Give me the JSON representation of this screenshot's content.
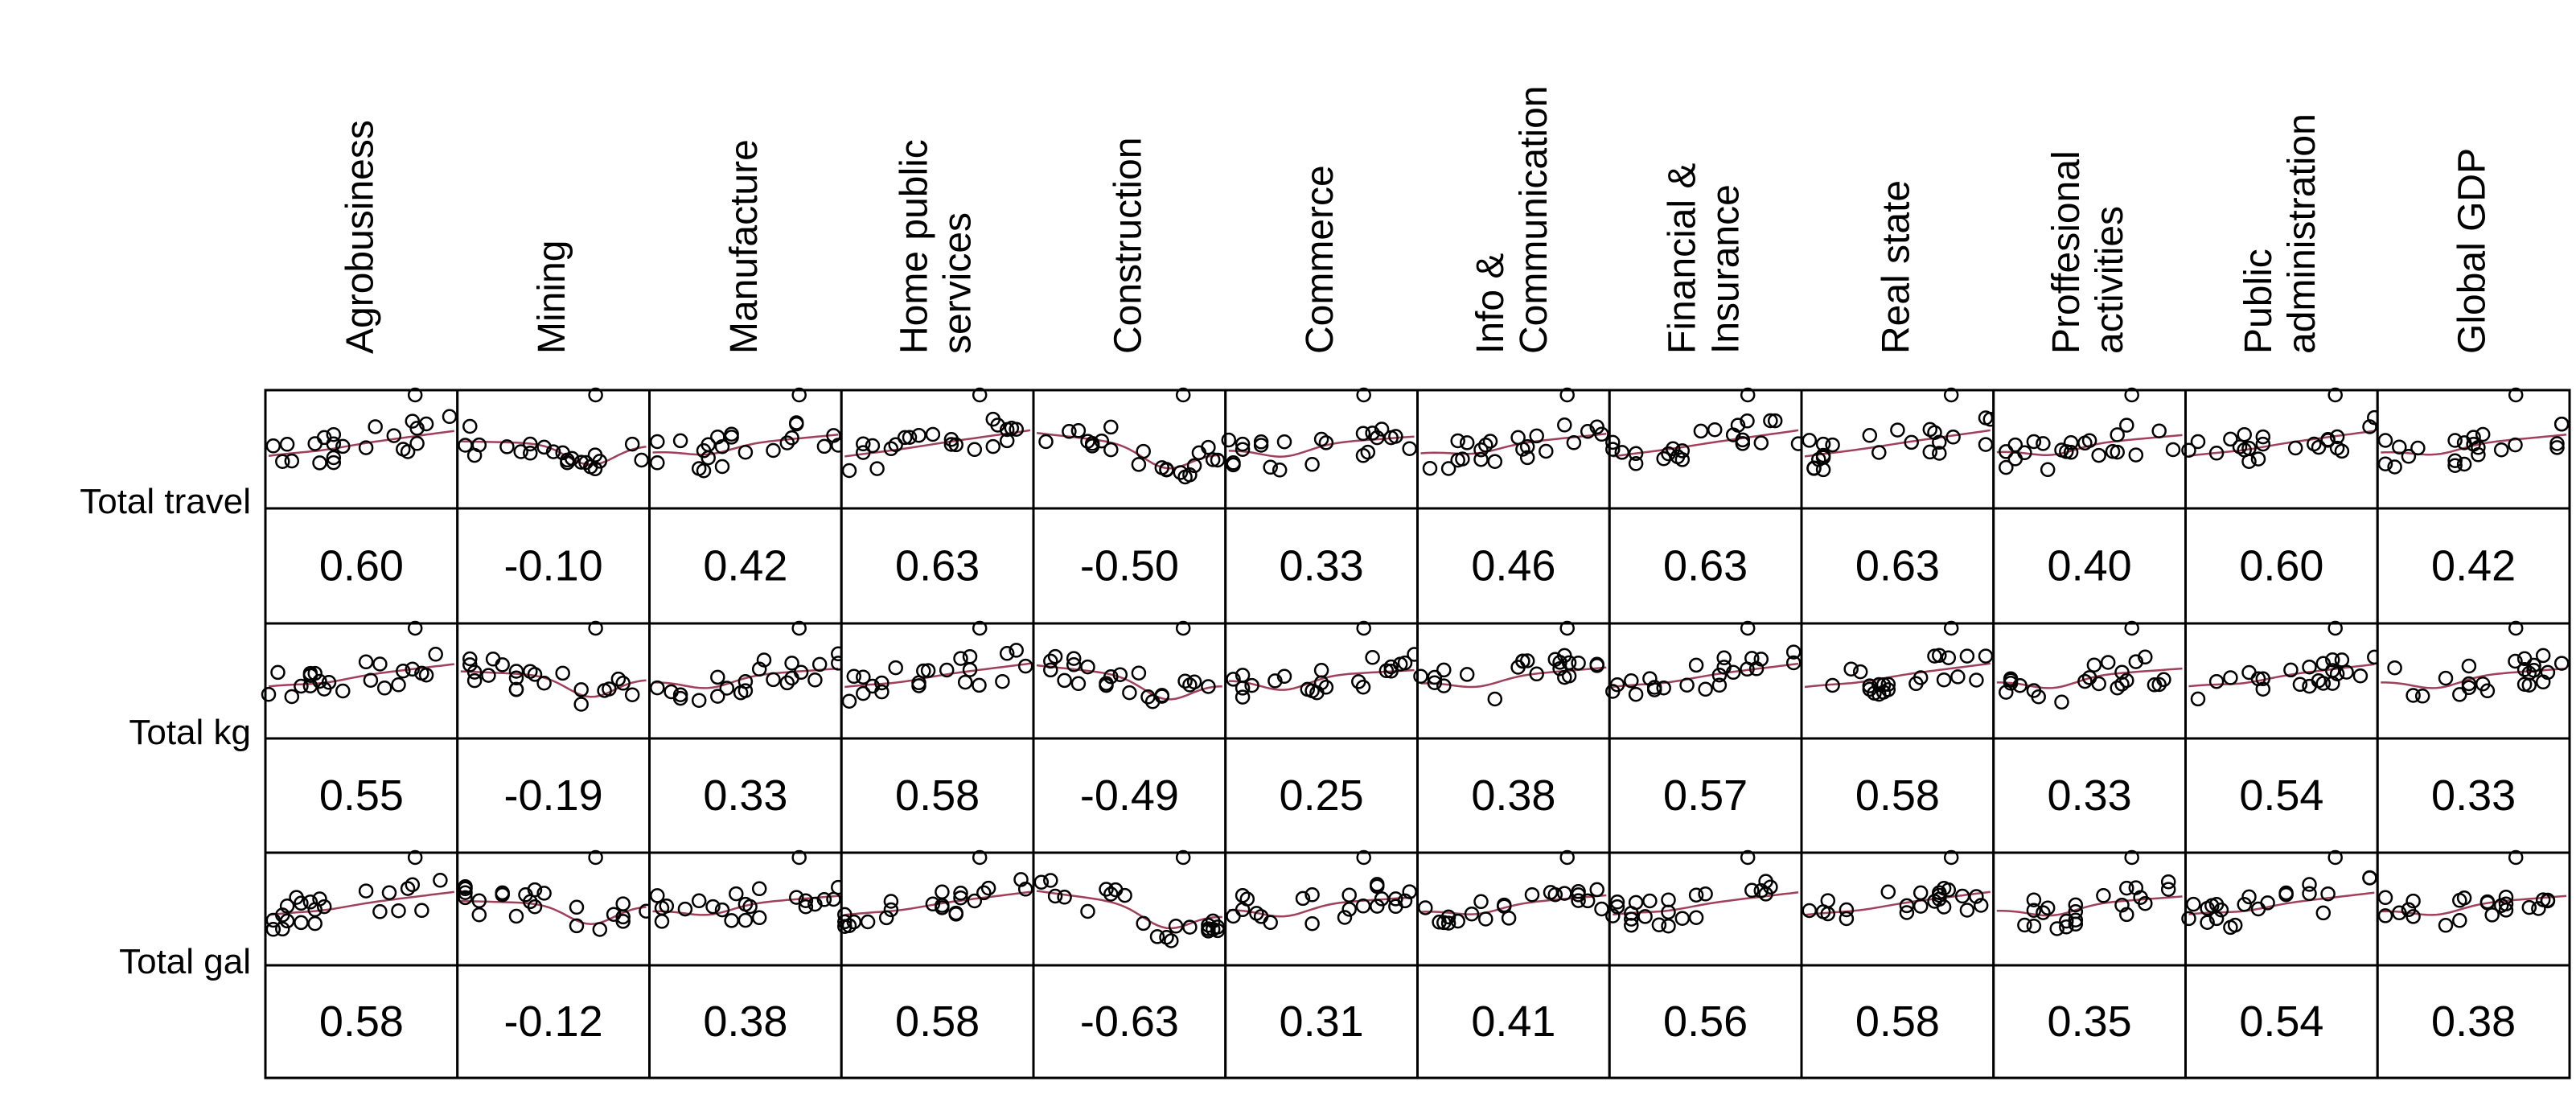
{
  "chart_data": {
    "type": "scatter",
    "title": "",
    "columns": [
      "Agrobusiness",
      "Mining",
      "Manufacture",
      "Home public services",
      "Construction",
      "Commerce",
      "Info & Communication",
      "Financial & Insurance",
      "Real state",
      "Proffesional activities",
      "Public administration",
      "Global GDP"
    ],
    "column_label_lines": [
      [
        "Agrobusiness"
      ],
      [
        "Mining"
      ],
      [
        "Manufacture"
      ],
      [
        "Home public",
        "services"
      ],
      [
        "Construction"
      ],
      [
        "Commerce"
      ],
      [
        "Info &",
        "Communication"
      ],
      [
        "Financial &",
        "Insurance"
      ],
      [
        "Real state"
      ],
      [
        "Proffesional",
        "activities"
      ],
      [
        "Public",
        "administration"
      ],
      [
        "Global GDP"
      ]
    ],
    "rows": [
      "Total travel",
      "Total kg",
      "Total gal"
    ],
    "correlations": [
      [
        "0.60",
        "-0.10",
        "0.42",
        "0.63",
        "-0.50",
        "0.33",
        "0.46",
        "0.63",
        "0.63",
        "0.40",
        "0.60",
        "0.42"
      ],
      [
        "0.55",
        "-0.19",
        "0.33",
        "0.58",
        "-0.49",
        "0.25",
        "0.38",
        "0.57",
        "0.58",
        "0.33",
        "0.54",
        "0.33"
      ],
      [
        "0.58",
        "-0.12",
        "0.38",
        "0.58",
        "-0.63",
        "0.31",
        "0.41",
        "0.56",
        "0.58",
        "0.35",
        "0.54",
        "0.38"
      ]
    ],
    "series_color": "#a0405a",
    "point_color": "#000000"
  }
}
